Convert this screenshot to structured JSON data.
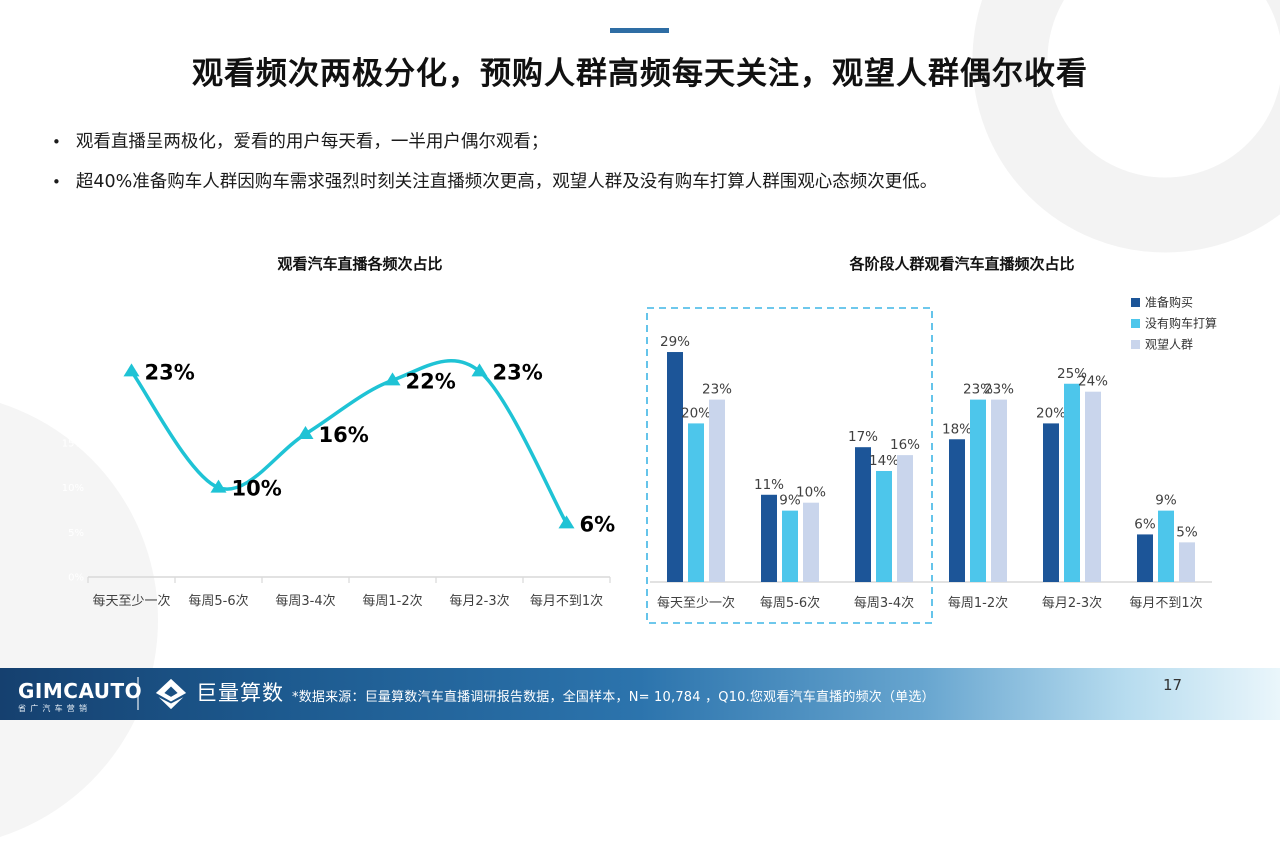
{
  "slide": {
    "accent_dash_color": "#2E6DA4",
    "title": "观看频次两极分化，预购人群高频每天关注，观望人群偶尔收看",
    "bullet_char": "•",
    "bullets": [
      "观看直播呈两极化，爱看的用户每天看，一半用户偶尔观看；",
      "超40%准备购车人群因购车需求强烈时刻关注直播频次更高，观望人群及没有购车打算人群围观心态频次更低。"
    ],
    "page_number": "17"
  },
  "footer": {
    "brand": "GIMCAUTO",
    "brand_sub": "省广汽车营销",
    "logo_icon": "ocean-engine-diamond",
    "logo_name": "巨量算数",
    "source_note": "*数据来源：巨量算数汽车直播调研报告数据，全国样本，N= 10,784 ，Q10.您观看汽车直播的频次（单选）",
    "gradient_colors": [
      "#15406F",
      "#2C74AD",
      "#EAF6FB"
    ]
  },
  "chart_data": [
    {
      "type": "line",
      "title": "观看汽车直播各频次占比",
      "categories": [
        "每天至少一次",
        "每周5-6次",
        "每周3-4次",
        "每周1-2次",
        "每月2-3次",
        "每月不到1次"
      ],
      "values": [
        23,
        10,
        16,
        22,
        23,
        6
      ],
      "data_labels": [
        "23%",
        "10%",
        "16%",
        "22%",
        "23%",
        "6%"
      ],
      "ylim": [
        0,
        25
      ],
      "ytick_step": 5,
      "ytick_labels": [
        "0%",
        "5%",
        "10%",
        "15%",
        "20%",
        "25%"
      ],
      "ytick_color": "#ffffff",
      "line_color": "#1FC3D5",
      "marker": "triangle-up",
      "grid": false,
      "legend": "none",
      "label_color": "#000000",
      "axis_color": "#D9D9D9",
      "category_label_color": "#404040"
    },
    {
      "type": "bar",
      "title": "各阶段人群观看汽车直播频次占比",
      "categories": [
        "每天至少一次",
        "每周5-6次",
        "每周3-4次",
        "每周1-2次",
        "每月2-3次",
        "每月不到1次"
      ],
      "series": [
        {
          "name": "准备购买",
          "color": "#1C5598",
          "values": [
            29,
            11,
            17,
            18,
            20,
            6
          ]
        },
        {
          "name": "没有购车打算",
          "color": "#4DC6EB",
          "values": [
            20,
            9,
            14,
            23,
            25,
            9
          ]
        },
        {
          "name": "观望人群",
          "color": "#C9D5EC",
          "values": [
            23,
            10,
            16,
            23,
            24,
            5
          ]
        }
      ],
      "ylim": [
        0,
        30
      ],
      "grid": false,
      "legend_position": "top-right",
      "value_label_color": "#404040",
      "axis_color": "#D9D9D9",
      "category_label_color": "#404040",
      "highlight_box": {
        "style": "dashed",
        "color": "#3FB6E5",
        "categories": [
          "每天至少一次",
          "每周5-6次",
          "每周3-4次"
        ]
      }
    }
  ]
}
